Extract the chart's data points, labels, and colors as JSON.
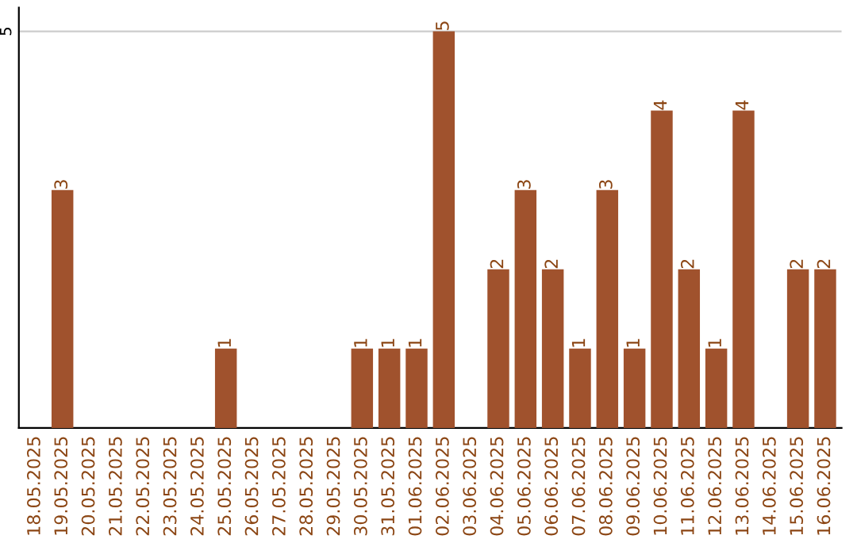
{
  "chart_data": {
    "type": "bar",
    "categories": [
      "18.05.2025",
      "19.05.2025",
      "20.05.2025",
      "21.05.2025",
      "22.05.2025",
      "23.05.2025",
      "24.05.2025",
      "25.05.2025",
      "26.05.2025",
      "27.05.2025",
      "28.05.2025",
      "29.05.2025",
      "30.05.2025",
      "31.05.2025",
      "01.06.2025",
      "02.06.2025",
      "03.06.2025",
      "04.06.2025",
      "05.06.2025",
      "06.06.2025",
      "07.06.2025",
      "08.06.2025",
      "09.06.2025",
      "10.06.2025",
      "11.06.2025",
      "12.06.2025",
      "13.06.2025",
      "14.06.2025",
      "15.06.2025",
      "16.06.2025"
    ],
    "values": [
      0,
      3,
      0,
      0,
      0,
      0,
      0,
      1,
      0,
      0,
      0,
      0,
      1,
      1,
      1,
      5,
      0,
      2,
      3,
      2,
      1,
      3,
      1,
      4,
      2,
      1,
      4,
      0,
      2,
      2
    ],
    "value_labels": [
      null,
      "3",
      null,
      null,
      null,
      null,
      null,
      "1",
      null,
      null,
      null,
      null,
      "1",
      "1",
      "1",
      "5",
      null,
      "2",
      "3",
      "2",
      "1",
      "3",
      "1",
      "4",
      "2",
      "1",
      "4",
      null,
      "2",
      "2"
    ],
    "color": "#a0522d",
    "ylim": [
      0,
      5.3
    ],
    "yticks": [
      5
    ],
    "grid": "y",
    "legend": false
  }
}
